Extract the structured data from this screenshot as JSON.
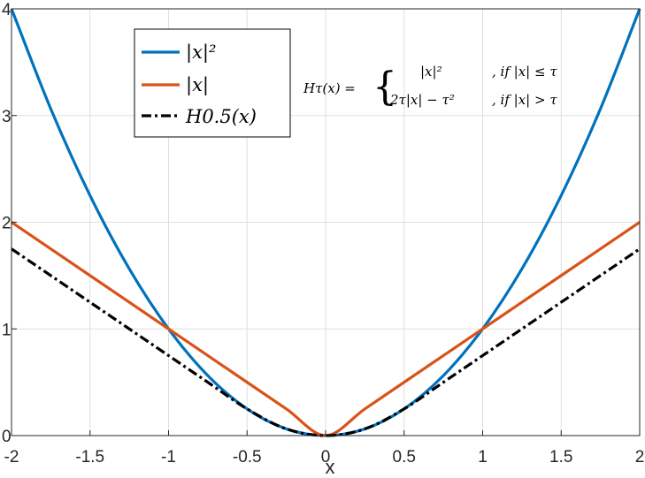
{
  "chart_data": {
    "type": "line",
    "title": "",
    "xlabel": "x",
    "ylabel": "",
    "xlim": [
      -2,
      2
    ],
    "ylim": [
      0,
      4
    ],
    "grid": true,
    "legend_position": "top-left",
    "x_ticks": [
      "-2",
      "-1.5",
      "-1",
      "-0.5",
      "0",
      "0.5",
      "1",
      "1.5",
      "2"
    ],
    "y_ticks": [
      "0",
      "1",
      "2",
      "3",
      "4"
    ],
    "x": [
      -2,
      -1.75,
      -1.5,
      -1.25,
      -1,
      -0.75,
      -0.5,
      -0.25,
      0,
      0.25,
      0.5,
      0.75,
      1,
      1.25,
      1.5,
      1.75,
      2
    ],
    "series": [
      {
        "name": "|x|²",
        "color": "#0072BD",
        "style": "solid",
        "values": [
          4,
          3.0625,
          2.25,
          1.5625,
          1,
          0.5625,
          0.25,
          0.0625,
          0,
          0.0625,
          0.25,
          0.5625,
          1,
          1.5625,
          2.25,
          3.0625,
          4
        ]
      },
      {
        "name": "|x|",
        "color": "#D95319",
        "style": "solid",
        "values": [
          2,
          1.75,
          1.5,
          1.25,
          1,
          0.75,
          0.5,
          0.25,
          0,
          0.25,
          0.5,
          0.75,
          1,
          1.25,
          1.5,
          1.75,
          2
        ]
      },
      {
        "name": "H0.5(x)",
        "color": "#000000",
        "style": "dashdot",
        "values": [
          1.75,
          1.5,
          1.25,
          1,
          0.75,
          0.5,
          0.25,
          0.0625,
          0,
          0.0625,
          0.25,
          0.5,
          0.75,
          1,
          1.25,
          1.5,
          1.75
        ]
      }
    ],
    "annotation": {
      "lhs": "Hτ(x) =",
      "case1_expr": "|x|²",
      "case1_cond": ", if  |x| ≤ τ",
      "case2_expr": "2τ|x| − τ²",
      "case2_cond": ", if  |x| > τ"
    }
  }
}
